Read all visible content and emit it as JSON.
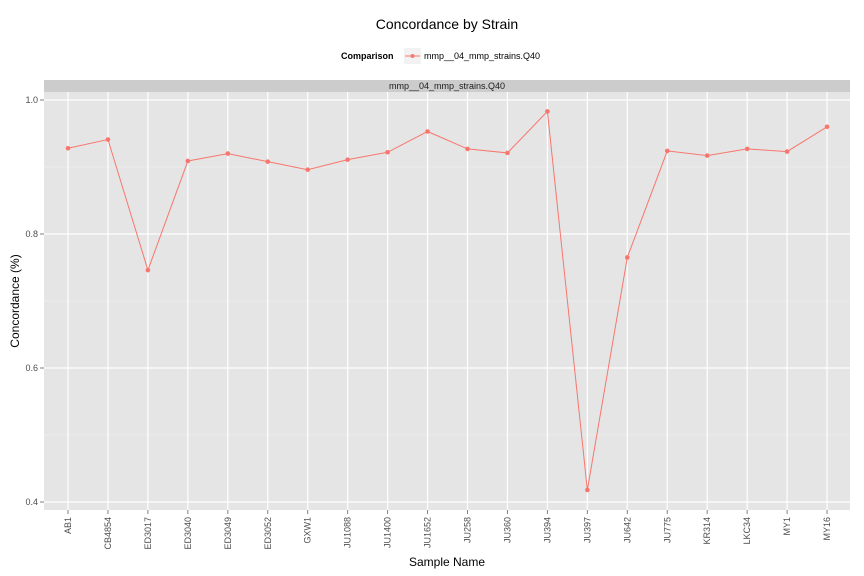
{
  "chart_data": {
    "type": "line",
    "title": "Concordance by Strain",
    "xlabel": "Sample Name",
    "ylabel": "Concordance (%)",
    "legend": {
      "title": "Comparison",
      "position": "top"
    },
    "facet_label": "mmp__04_mmp_strains.Q40",
    "categories": [
      "AB1",
      "CB4854",
      "ED3017",
      "ED3040",
      "ED3049",
      "ED3052",
      "GXW1",
      "JU1088",
      "JU1400",
      "JU1652",
      "JU258",
      "JU360",
      "JU394",
      "JU397",
      "JU642",
      "JU775",
      "KR314",
      "LKC34",
      "MY1",
      "MY16"
    ],
    "series": [
      {
        "name": "mmp__04_mmp_strains.Q40",
        "color": "#F8766D",
        "values": [
          0.928,
          0.941,
          0.746,
          0.909,
          0.92,
          0.908,
          0.896,
          0.911,
          0.922,
          0.953,
          0.927,
          0.921,
          0.983,
          0.418,
          0.765,
          0.924,
          0.917,
          0.927,
          0.923,
          0.96
        ]
      }
    ],
    "ylim": [
      0.39,
      1.01
    ],
    "yticks": [
      0.4,
      0.6,
      0.8,
      1.0
    ],
    "ytick_labels": [
      "0.4",
      "0.6",
      "0.8",
      "1.0"
    ],
    "grid": true,
    "panel_background": "#E5E5E5",
    "strip_background": "#CCCCCC"
  }
}
